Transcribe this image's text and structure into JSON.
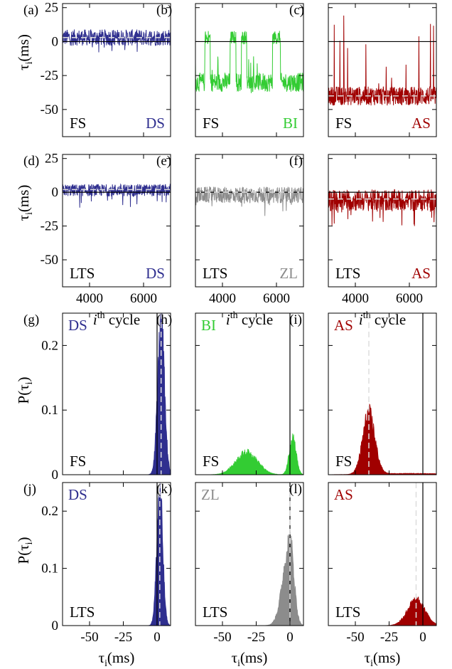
{
  "colors": {
    "DS": "#2f2f8f",
    "BI": "#33cc33",
    "AS": "#a00000",
    "ZL": "#8c8c8c",
    "zero_line": "#000000",
    "mean_line": "#dddddd"
  },
  "chart_data": [
    {
      "id": "a",
      "label": "(a)",
      "type": "line",
      "neuron": "FS",
      "state": "DS",
      "x_range": [
        3000,
        7000
      ],
      "ylim": [
        -70,
        28
      ],
      "y_ticks": [
        "25",
        "0",
        "-25",
        "-50"
      ],
      "ylabel": "τi(ms)",
      "series": [
        {
          "mean": 3,
          "mode": "band",
          "lo": -3,
          "hi": 9,
          "spikes_to": -8,
          "spike_dir": "down"
        }
      ]
    },
    {
      "id": "b",
      "label": "(b)",
      "type": "line",
      "neuron": "FS",
      "state": "BI",
      "x_range": [
        3000,
        7000
      ],
      "ylim": [
        -70,
        28
      ],
      "series": [
        {
          "mode": "bistable",
          "low": -30,
          "high": 3,
          "band": 10,
          "high_intervals": [
            [
              3350,
              3550
            ],
            [
              4280,
              4500
            ],
            [
              4700,
              4900
            ],
            [
              5850,
              6150
            ]
          ]
        }
      ]
    },
    {
      "id": "c",
      "label": "(c)",
      "type": "line",
      "neuron": "FS",
      "state": "AS",
      "x_range": [
        3000,
        7000
      ],
      "ylim": [
        -70,
        28
      ],
      "series": [
        {
          "mean": -40,
          "mode": "band",
          "lo": -47,
          "hi": -33,
          "spikes_to": 20,
          "spike_dir": "up"
        }
      ]
    },
    {
      "id": "d",
      "label": "(d)",
      "type": "line",
      "neuron": "LTS",
      "state": "DS",
      "x_range": [
        3000,
        7000
      ],
      "ylim": [
        -70,
        28
      ],
      "y_ticks": [
        "25",
        "0",
        "-25",
        "-50"
      ],
      "ylabel": "τi(ms)",
      "x_ticks": [
        "4000",
        "6000"
      ],
      "xlabel_i": "i",
      "xlabel_th": "th",
      "xlabel_rest": "cycle",
      "series": [
        {
          "mean": 2,
          "mode": "band",
          "lo": -3,
          "hi": 6,
          "spikes_to": -12,
          "spike_dir": "down"
        }
      ]
    },
    {
      "id": "e",
      "label": "(e)",
      "type": "line",
      "neuron": "LTS",
      "state": "ZL",
      "x_range": [
        3000,
        7000
      ],
      "ylim": [
        -70,
        28
      ],
      "x_ticks": [
        "4000",
        "6000"
      ],
      "xlabel_i": "i",
      "xlabel_th": "th",
      "xlabel_rest": "cycle",
      "series": [
        {
          "mean": 0,
          "mode": "band",
          "lo": -8,
          "hi": 4,
          "spikes_to": -20,
          "spike_dir": "down"
        }
      ]
    },
    {
      "id": "f",
      "label": "(f)",
      "type": "line",
      "neuron": "LTS",
      "state": "AS",
      "x_range": [
        3000,
        7000
      ],
      "ylim": [
        -70,
        28
      ],
      "x_ticks": [
        "4000",
        "6000"
      ],
      "xlabel_i": "i",
      "xlabel_th": "th",
      "xlabel_rest": "cycle",
      "series": [
        {
          "mean": -5,
          "mode": "band",
          "lo": -14,
          "hi": 2,
          "spikes_to": -25,
          "spike_dir": "down"
        }
      ]
    },
    {
      "id": "g",
      "label": "(g)",
      "type": "area",
      "neuron": "FS",
      "state": "DS",
      "xlim": [
        -70,
        10
      ],
      "ylim": [
        0,
        0.25
      ],
      "y_ticks": [
        "0.2",
        "0.1",
        "0"
      ],
      "ylabel": "P(τi)",
      "peaks": [
        {
          "center": 3,
          "sigma": 2.5,
          "height": 0.24
        }
      ],
      "mean": 3
    },
    {
      "id": "h",
      "label": "(h)",
      "type": "area",
      "neuron": "FS",
      "state": "BI",
      "xlim": [
        -70,
        10
      ],
      "ylim": [
        0,
        0.25
      ],
      "peaks": [
        {
          "center": -32,
          "sigma": 8,
          "height": 0.035
        },
        {
          "center": 2,
          "sigma": 2.5,
          "height": 0.06
        }
      ]
    },
    {
      "id": "i",
      "label": "(i)",
      "type": "area",
      "neuron": "FS",
      "state": "AS",
      "xlim": [
        -70,
        10
      ],
      "ylim": [
        0,
        0.25
      ],
      "peaks": [
        {
          "center": -40,
          "sigma": 4.5,
          "height": 0.095
        },
        {
          "center": -10,
          "sigma": 25,
          "height": 0.002
        }
      ],
      "mean": -40
    },
    {
      "id": "j",
      "label": "(j)",
      "type": "area",
      "neuron": "LTS",
      "state": "DS",
      "xlim": [
        -70,
        10
      ],
      "ylim": [
        0,
        0.25
      ],
      "y_ticks": [
        "0.2",
        "0.1",
        "0"
      ],
      "ylabel": "P(τi)",
      "x_ticks": [
        "-50",
        "-25",
        "0"
      ],
      "xlabel": "τi(ms)",
      "peaks": [
        {
          "center": 2,
          "sigma": 2.2,
          "height": 0.24
        }
      ],
      "mean": 2
    },
    {
      "id": "k",
      "label": "(k)",
      "type": "area",
      "neuron": "LTS",
      "state": "ZL",
      "xlim": [
        -70,
        10
      ],
      "ylim": [
        0,
        0.25
      ],
      "x_ticks": [
        "-50",
        "-25",
        "0"
      ],
      "xlabel": "τi(ms)",
      "peaks": [
        {
          "center": 0,
          "sigma": 3,
          "height": 0.15,
          "left_sigma": 5
        }
      ],
      "mean": 0
    },
    {
      "id": "l",
      "label": "(l)",
      "type": "area",
      "neuron": "LTS",
      "state": "AS",
      "xlim": [
        -70,
        10
      ],
      "ylim": [
        0,
        0.25
      ],
      "x_ticks": [
        "-50",
        "-25",
        "0"
      ],
      "xlabel": "τi(ms)",
      "peaks": [
        {
          "center": -5,
          "sigma": 6.5,
          "height": 0.045
        }
      ],
      "mean": -5
    }
  ]
}
